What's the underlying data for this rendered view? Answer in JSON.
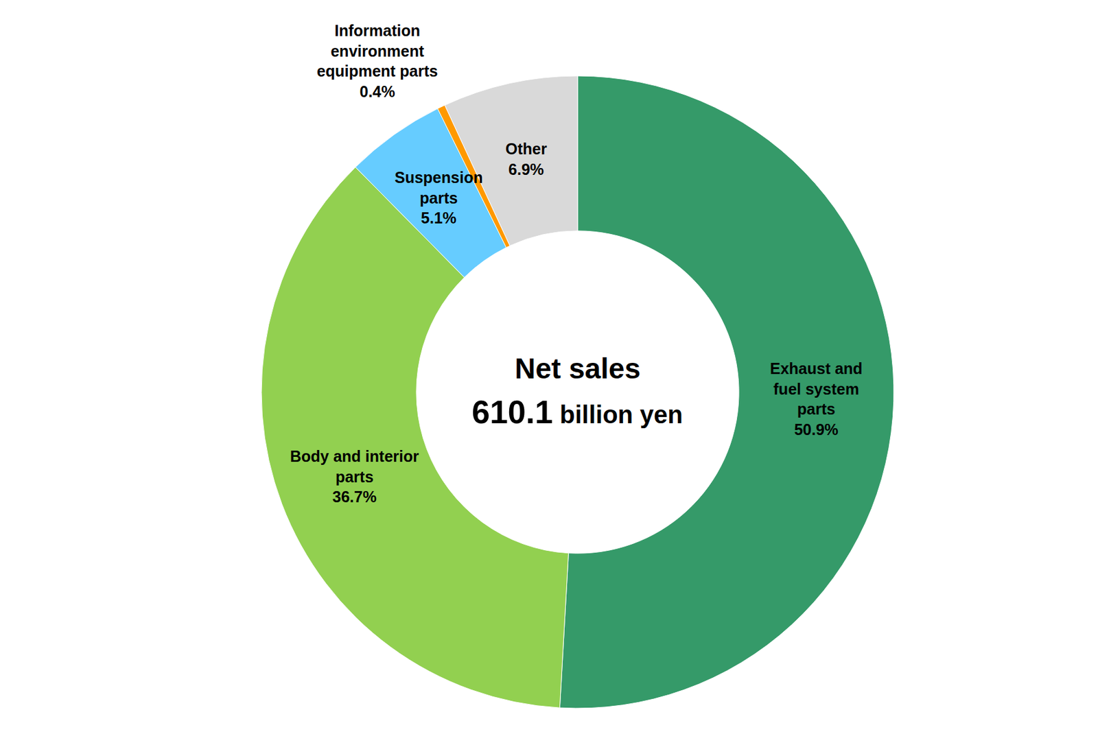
{
  "chart_data": {
    "type": "donut",
    "center_text": "Net sales",
    "total": 610.1,
    "total_unit": "billion yen",
    "categories": [
      "Exhaust and fuel system parts",
      "Body and interior parts",
      "Suspension parts",
      "Information environment equipment parts",
      "Other"
    ],
    "values": [
      50.9,
      36.7,
      5.1,
      0.4,
      6.9
    ],
    "value_labels": [
      "50.9%",
      "36.7%",
      "5.1%",
      "0.4%",
      "6.9%"
    ],
    "colors": [
      "#359a69",
      "#92d050",
      "#66ccff",
      "#ff9900",
      "#d9d9d9"
    ],
    "data_labels": true
  }
}
